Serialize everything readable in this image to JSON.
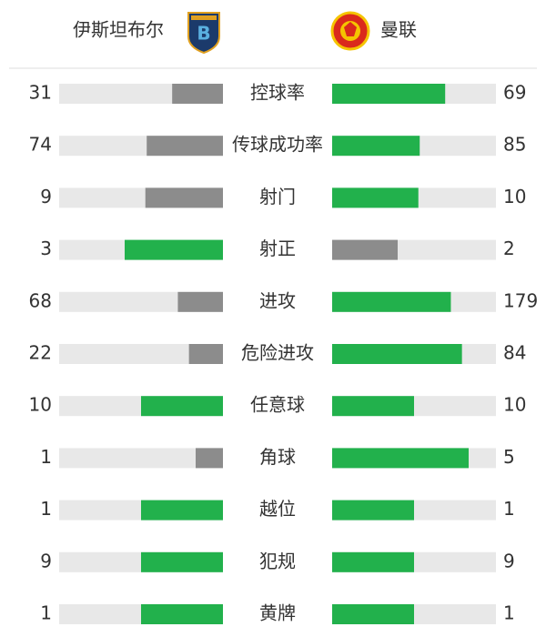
{
  "teams": {
    "home": "伊斯坦布尔",
    "away": "曼联"
  },
  "colors": {
    "leading": "#22b14c",
    "trailing": "#8c8c8c",
    "track": "#e8e8e8"
  },
  "stats": [
    {
      "label": "控球率",
      "home": 31,
      "away": 69
    },
    {
      "label": "传球成功率",
      "home": 74,
      "away": 85
    },
    {
      "label": "射门",
      "home": 9,
      "away": 10
    },
    {
      "label": "射正",
      "home": 3,
      "away": 2
    },
    {
      "label": "进攻",
      "home": 68,
      "away": 179
    },
    {
      "label": "危险进攻",
      "home": 22,
      "away": 84
    },
    {
      "label": "任意球",
      "home": 10,
      "away": 10
    },
    {
      "label": "角球",
      "home": 1,
      "away": 5
    },
    {
      "label": "越位",
      "home": 1,
      "away": 1
    },
    {
      "label": "犯规",
      "home": 9,
      "away": 9
    },
    {
      "label": "黄牌",
      "home": 1,
      "away": 1
    }
  ]
}
